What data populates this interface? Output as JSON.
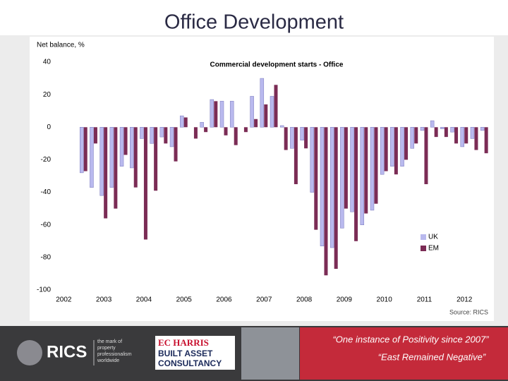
{
  "slide_title": "Office Development",
  "chart_data": {
    "type": "bar",
    "title": "Commercial development starts - Office",
    "ylabel": "Net balance, %",
    "source": "Source: RICS",
    "x": [
      2002.5,
      2002.75,
      2003,
      2003.25,
      2003.5,
      2003.75,
      2004,
      2004.25,
      2004.5,
      2004.75,
      2005,
      2005.25,
      2005.5,
      2005.75,
      2006,
      2006.25,
      2006.5,
      2006.75,
      2007,
      2007.25,
      2007.5,
      2007.75,
      2008,
      2008.25,
      2008.5,
      2008.75,
      2009,
      2009.25,
      2009.5,
      2009.75,
      2010,
      2010.25,
      2010.5,
      2010.75,
      2011,
      2011.25,
      2011.5,
      2011.75,
      2012,
      2012.25,
      2012.5
    ],
    "series": [
      {
        "name": "UK",
        "color": "#b9b9ee",
        "values": [
          -28,
          -37,
          -42,
          -37,
          -24,
          -25,
          -7,
          -10,
          -6,
          -12,
          7,
          0,
          3,
          17,
          16,
          16,
          0,
          19,
          30,
          19,
          1,
          -13,
          -8,
          -40,
          -73,
          -74,
          -62,
          -52,
          -60,
          -51,
          -29,
          -24,
          -24,
          -13,
          -2,
          4,
          -1,
          -3,
          -12,
          -7,
          -2
        ]
      },
      {
        "name": "EM",
        "color": "#7b2c55",
        "values": [
          -27,
          -10,
          -56,
          -50,
          -17,
          -37,
          -69,
          -39,
          -10,
          -21,
          6,
          -7,
          -3,
          16,
          -5,
          -11,
          -3,
          5,
          14,
          26,
          -14,
          -35,
          -13,
          -63,
          -91,
          -87,
          -50,
          -70,
          -53,
          -47,
          -27,
          -29,
          -20,
          -10,
          -35,
          -6,
          -6,
          -10,
          -10,
          -14,
          -16
        ]
      }
    ],
    "xlim": [
      2001.8,
      2012.7
    ],
    "xticks": [
      2002,
      2003,
      2004,
      2005,
      2006,
      2007,
      2008,
      2009,
      2010,
      2011,
      2012
    ],
    "ylim": [
      -100,
      40
    ],
    "yticks": [
      -100,
      -80,
      -60,
      -40,
      -20,
      0,
      20,
      40
    ],
    "legend": "lower right"
  },
  "footer": {
    "rics": "RICS",
    "rics_tagline": [
      "the mark of",
      "property",
      "professionalism",
      "worldwide"
    ],
    "echarris": "EC HARRIS",
    "echarris_sub": [
      "BUILT ASSET",
      "CONSULTANCY"
    ],
    "quotes": [
      "“One instance of Positivity since 2007”",
      "“East Remained Negative”"
    ]
  }
}
